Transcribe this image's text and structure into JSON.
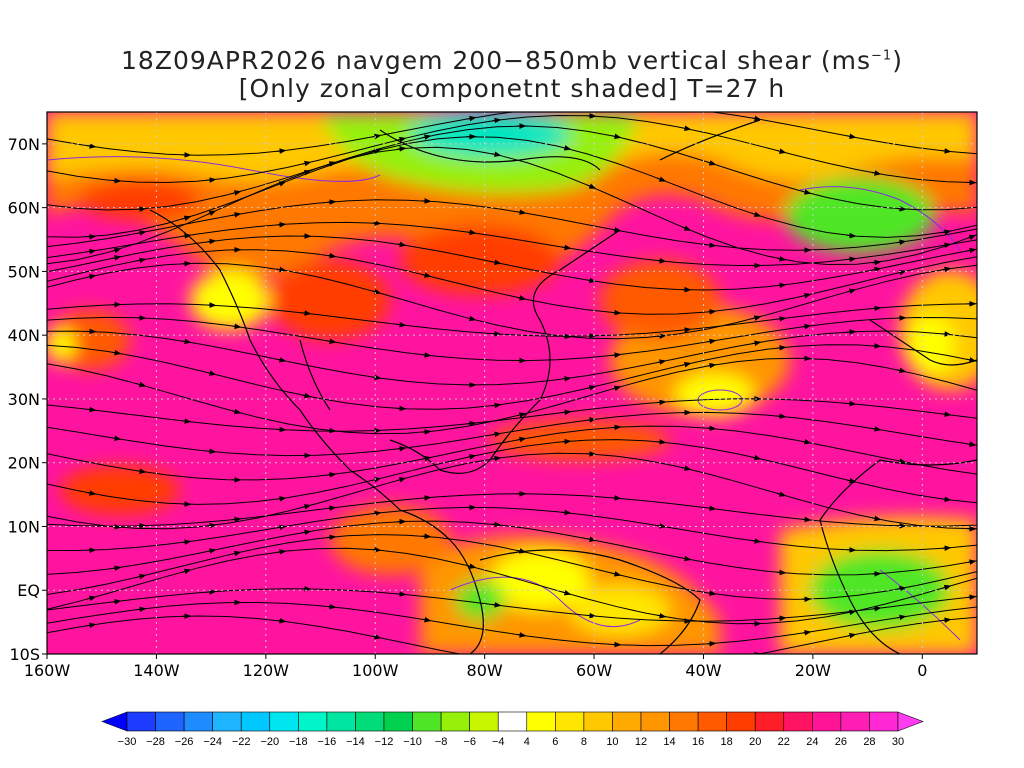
{
  "title": {
    "line1_prefix": "18Z09APR2026 navgem 200−850mb vertical shear (ms",
    "line1_sup": "−1",
    "line1_suffix": ")",
    "line2": "[Only zonal componetnt shaded] T=27 h"
  },
  "map": {
    "lon_range": [
      -160,
      10
    ],
    "lat_range": [
      -10,
      75
    ],
    "lat_labels": [
      "70N",
      "60N",
      "50N",
      "40N",
      "30N",
      "20N",
      "10N",
      "EQ",
      "10S"
    ],
    "lat_values": [
      70,
      60,
      50,
      40,
      30,
      20,
      10,
      0,
      -10
    ],
    "lon_labels": [
      "160W",
      "140W",
      "120W",
      "100W",
      "80W",
      "60W",
      "40W",
      "20W",
      "0"
    ],
    "lon_values": [
      -160,
      -140,
      -120,
      -100,
      -80,
      -60,
      -40,
      -20,
      0
    ],
    "gridlines": "dotted"
  },
  "colorbar": {
    "labels": [
      "−30",
      "−28",
      "−26",
      "−24",
      "−22",
      "−20",
      "−18",
      "−16",
      "−14",
      "−12",
      "−10",
      "−8",
      "−6",
      "−4",
      "4",
      "6",
      "8",
      "10",
      "12",
      "14",
      "16",
      "18",
      "20",
      "22",
      "24",
      "26",
      "28",
      "30"
    ],
    "colors": [
      "#1e3cff",
      "#1e64ff",
      "#1e8cff",
      "#1eb4ff",
      "#00c8ff",
      "#00e6f0",
      "#00f5c8",
      "#00e6a0",
      "#00dc78",
      "#00d250",
      "#50e628",
      "#96f00a",
      "#c8f500",
      "#ffffff",
      "#ffff00",
      "#ffe600",
      "#ffc800",
      "#ffaa00",
      "#ff9600",
      "#ff7800",
      "#ff5a00",
      "#ff3c00",
      "#ff1e28",
      "#ff1464",
      "#ff1496",
      "#ff1eb4",
      "#ff28d2"
    ],
    "left_arrow_color": "#0000ff",
    "right_arrow_color": "#ff3cf0"
  }
}
